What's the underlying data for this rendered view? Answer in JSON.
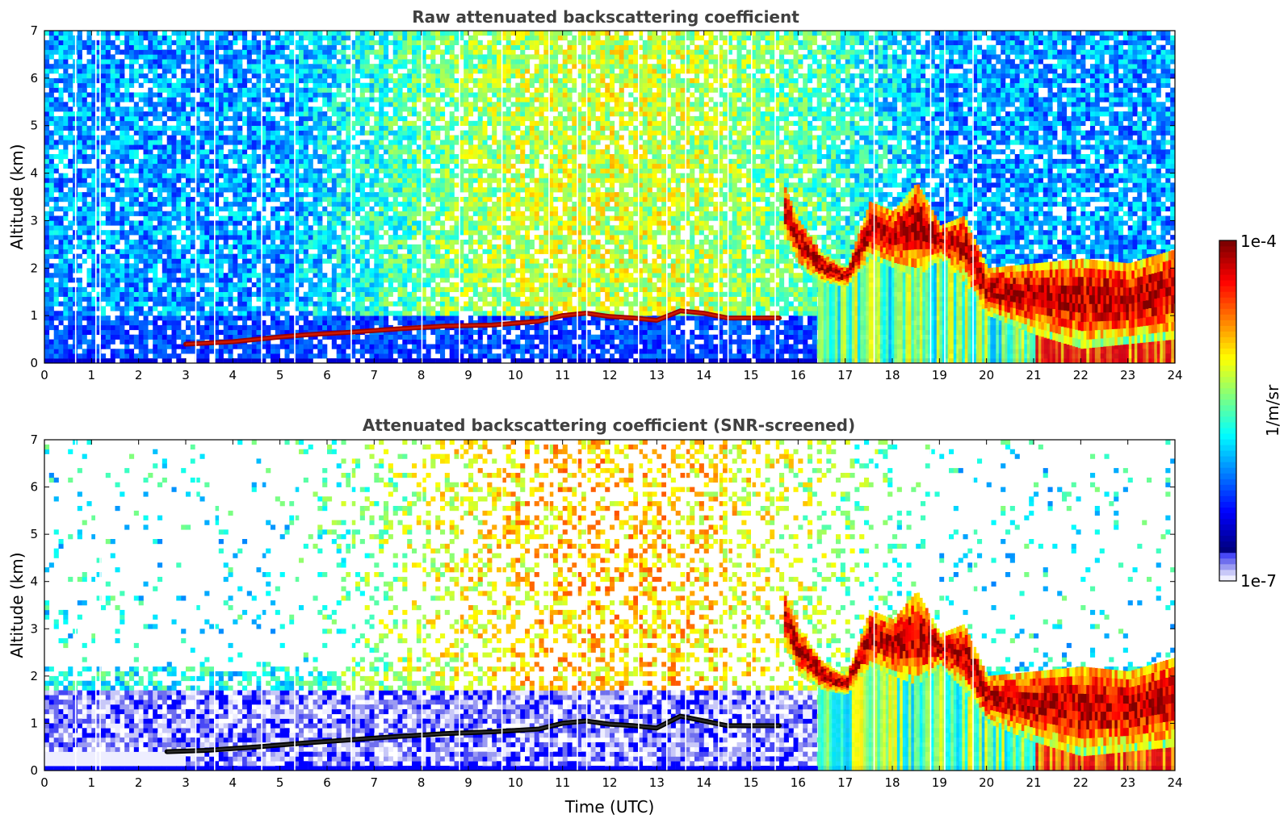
{
  "colors": {
    "jet": [
      "#00007f",
      "#0000ff",
      "#007fff",
      "#00ffff",
      "#7fff7f",
      "#ffff00",
      "#ff7f00",
      "#ff0000",
      "#7f0000"
    ],
    "low_shades": [
      "#eeeeff",
      "#c8c8f8",
      "#9b9bf2",
      "#6f6fee",
      "#4848f5"
    ]
  },
  "chart_data": [
    {
      "type": "heatmap",
      "title": "Raw attenuated backscattering coefficient",
      "xlabel": "",
      "ylabel": "Altitude (km)",
      "xlim": [
        0,
        24
      ],
      "ylim": [
        0,
        7
      ],
      "xticks": [
        "0",
        "1",
        "2",
        "3",
        "4",
        "5",
        "6",
        "7",
        "8",
        "9",
        "10",
        "11",
        "12",
        "13",
        "14",
        "15",
        "16",
        "17",
        "18",
        "19",
        "20",
        "21",
        "22",
        "23",
        "24"
      ],
      "yticks": [
        "0",
        "1",
        "2",
        "3",
        "4",
        "5",
        "6",
        "7"
      ],
      "screened": false,
      "layers": [
        {
          "kind": "aerosol_layer",
          "x": [
            3.0,
            4.0,
            5.0,
            5.6,
            6.5,
            7.5,
            8.5,
            9.5,
            10.5,
            11.0,
            11.5,
            12.0,
            12.5,
            13.0,
            13.5,
            14.0,
            14.5,
            15.0,
            15.6
          ],
          "y": [
            0.4,
            0.45,
            0.55,
            0.6,
            0.65,
            0.72,
            0.78,
            0.8,
            0.88,
            1.0,
            1.05,
            0.98,
            0.95,
            0.9,
            1.1,
            1.05,
            0.95,
            0.95,
            0.95
          ]
        },
        {
          "kind": "cloud_band",
          "x": [
            15.7,
            16.0,
            16.5,
            17.0,
            17.5,
            18.0,
            18.5,
            19.0,
            19.5,
            20.0,
            21.0,
            22.0,
            23.0,
            24.0
          ],
          "y_bottom": [
            2.6,
            2.0,
            1.7,
            1.6,
            2.2,
            2.0,
            1.8,
            2.2,
            1.7,
            1.0,
            0.6,
            0.3,
            0.4,
            0.5
          ],
          "y_top": [
            3.7,
            3.0,
            2.3,
            2.0,
            3.4,
            3.2,
            3.8,
            2.9,
            3.1,
            2.0,
            2.1,
            2.2,
            2.1,
            2.4
          ]
        }
      ]
    },
    {
      "type": "heatmap",
      "title": "Attenuated backscattering coefficient (SNR-screened)",
      "xlabel": "Time (UTC)",
      "ylabel": "Altitude (km)",
      "xlim": [
        0,
        24
      ],
      "ylim": [
        0,
        7
      ],
      "xticks": [
        "0",
        "1",
        "2",
        "3",
        "4",
        "5",
        "6",
        "7",
        "8",
        "9",
        "10",
        "11",
        "12",
        "13",
        "14",
        "15",
        "16",
        "17",
        "18",
        "19",
        "20",
        "21",
        "22",
        "23",
        "24"
      ],
      "yticks": [
        "0",
        "1",
        "2",
        "3",
        "4",
        "5",
        "6",
        "7"
      ],
      "screened": true,
      "layers": [
        {
          "kind": "aerosol_layer",
          "x": [
            2.6,
            3.5,
            4.5,
            5.5,
            6.5,
            7.5,
            8.5,
            9.5,
            10.5,
            11.0,
            11.5,
            12.0,
            12.5,
            13.0,
            13.5,
            14.0,
            14.5,
            15.0,
            15.6
          ],
          "y": [
            0.4,
            0.43,
            0.5,
            0.58,
            0.65,
            0.72,
            0.78,
            0.82,
            0.88,
            1.0,
            1.05,
            0.98,
            0.95,
            0.9,
            1.15,
            1.05,
            0.95,
            0.95,
            0.95
          ]
        },
        {
          "kind": "cloud_band",
          "x": [
            15.7,
            16.0,
            16.5,
            17.0,
            17.5,
            18.0,
            18.5,
            19.0,
            19.5,
            20.0,
            21.0,
            22.0,
            23.0,
            24.0
          ],
          "y_bottom": [
            2.6,
            2.0,
            1.7,
            1.6,
            2.2,
            2.0,
            1.8,
            2.2,
            1.7,
            1.0,
            0.6,
            0.3,
            0.4,
            0.5
          ],
          "y_top": [
            3.7,
            3.0,
            2.3,
            2.0,
            3.4,
            3.2,
            3.8,
            2.9,
            3.1,
            2.0,
            2.1,
            2.2,
            2.1,
            2.4
          ]
        }
      ]
    }
  ],
  "colorbar": {
    "label": "1/m/sr",
    "max_label": "1e-4",
    "min_label": "1e-7",
    "vmin": 1e-07,
    "vmax": 0.0001,
    "scale": "log"
  }
}
